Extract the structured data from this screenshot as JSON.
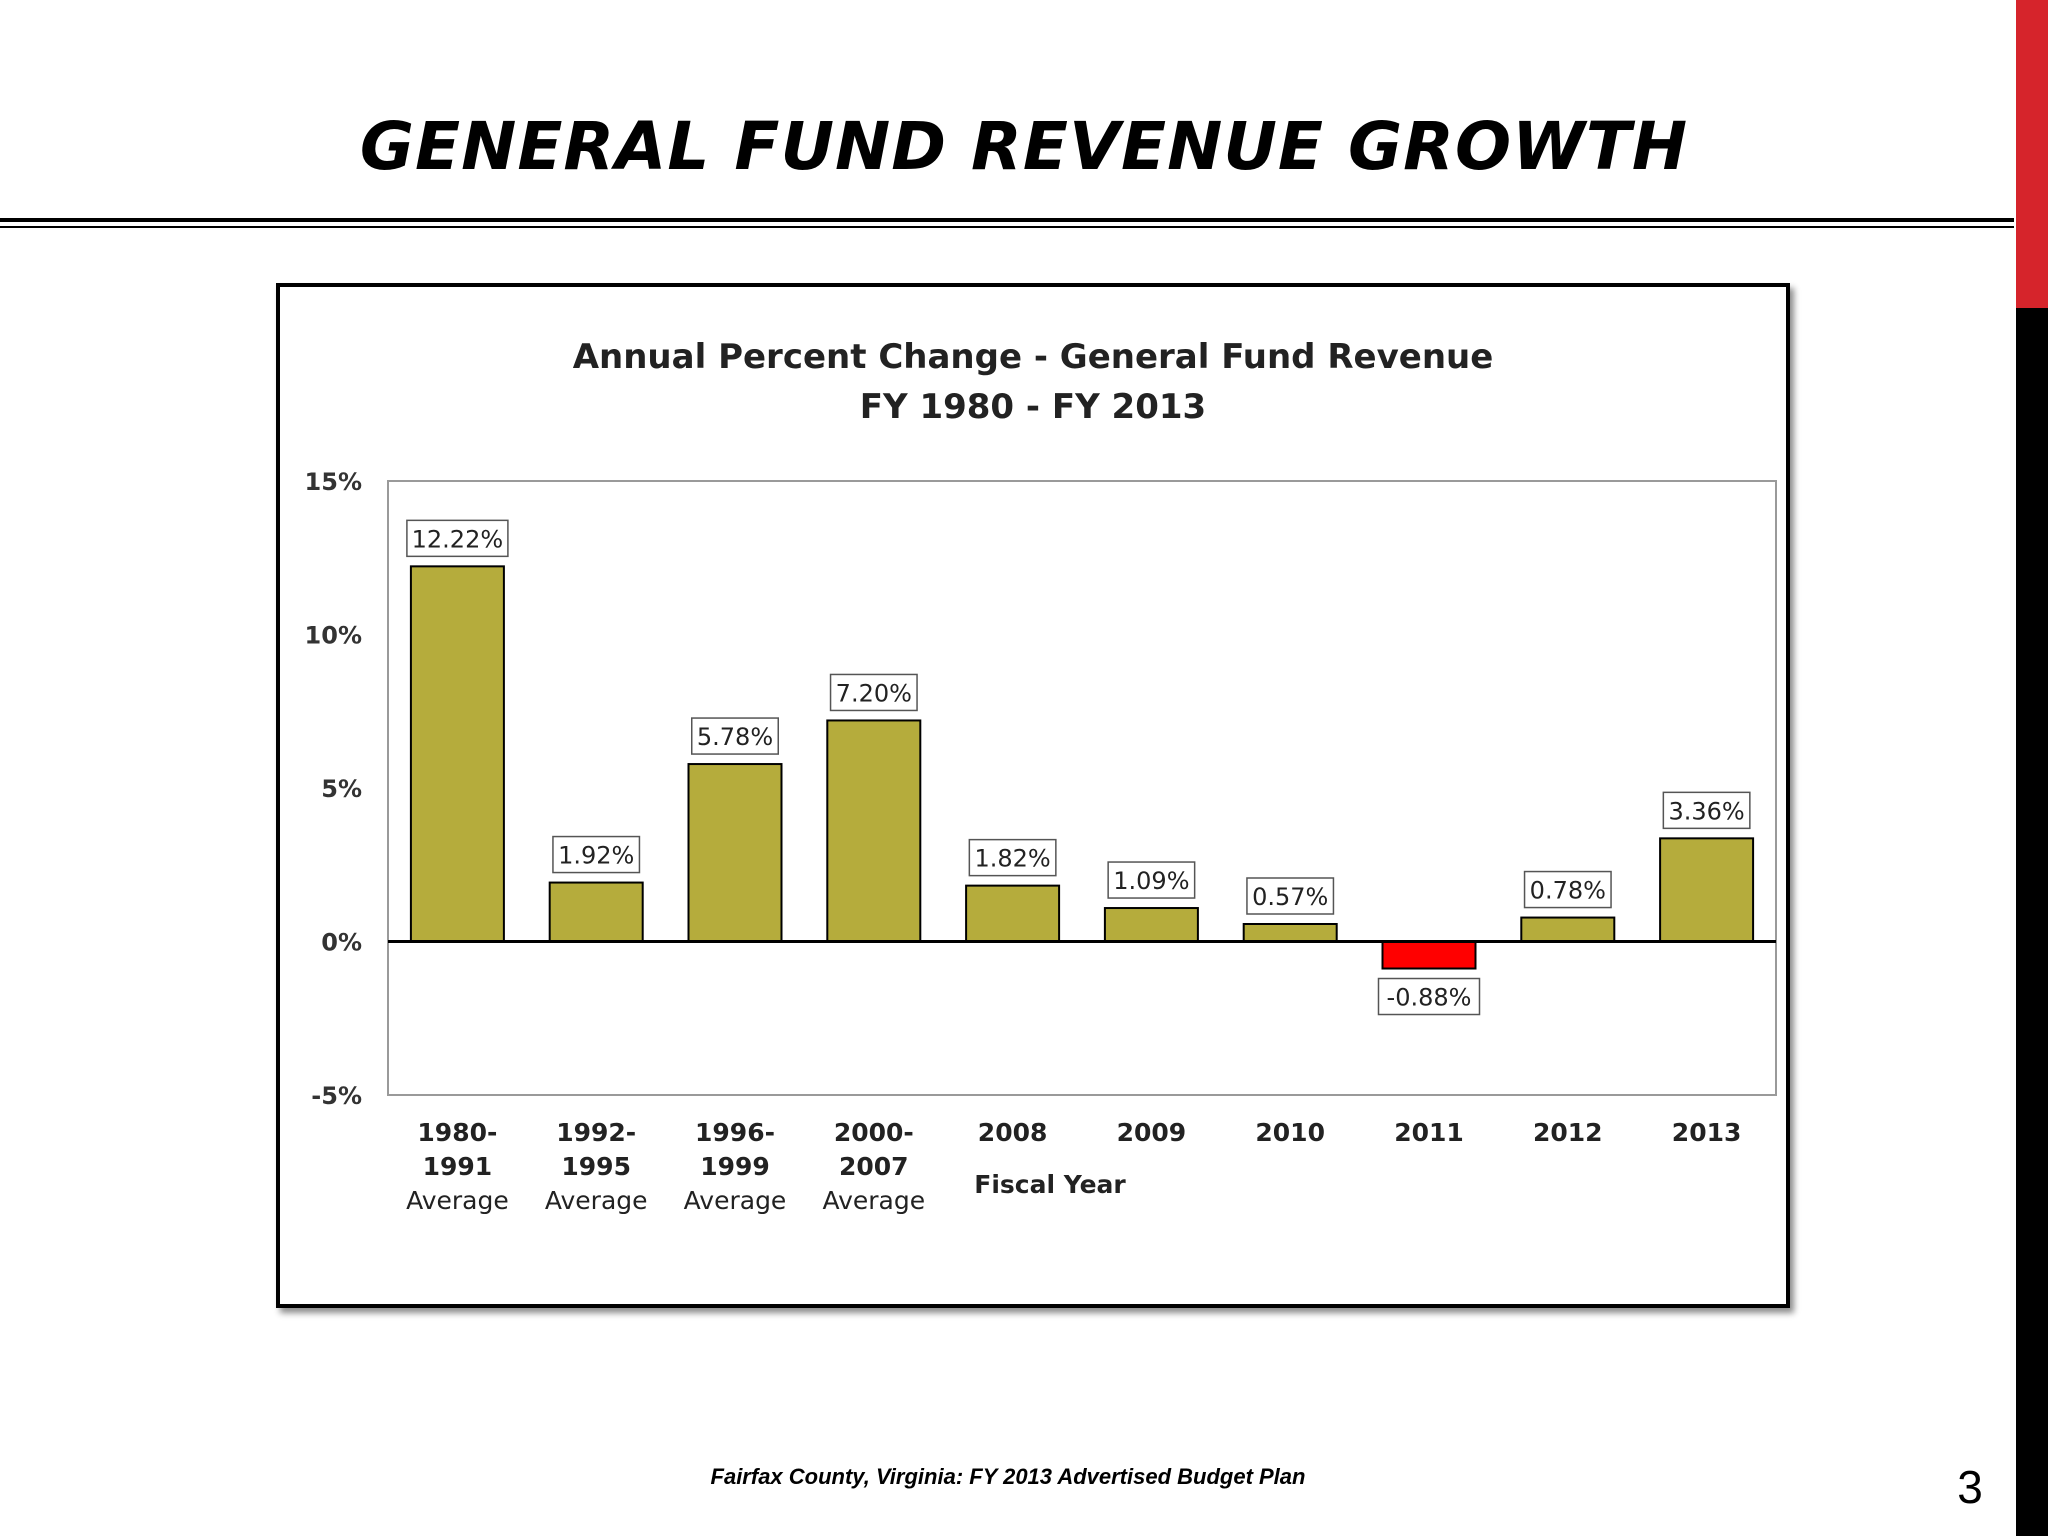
{
  "slide": {
    "title": "GENERAL FUND REVENUE GROWTH",
    "footer": "Fairfax County, Virginia: FY 2013 Advertised Budget Plan",
    "page_number": "3"
  },
  "colors": {
    "bar_positive": "#b5ac3c",
    "bar_negative": "#ff0000",
    "accent_red": "#d6242b"
  },
  "chart_data": {
    "type": "bar",
    "title": "Annual Percent Change - General Fund Revenue",
    "subtitle": "FY 1980 - FY 2013",
    "xlabel": "Fiscal Year",
    "ylabel": "",
    "ylim": [
      -5,
      15
    ],
    "yticks": [
      15,
      10,
      5,
      0,
      -5
    ],
    "ytick_labels": [
      "15%",
      "10%",
      "5%",
      "0%",
      "-5%"
    ],
    "grid": false,
    "categories": [
      [
        "1980-",
        "1991",
        "Average"
      ],
      [
        "1992-",
        "1995",
        "Average"
      ],
      [
        "1996-",
        "1999",
        "Average"
      ],
      [
        "2000-",
        "2007",
        "Average"
      ],
      [
        "2008"
      ],
      [
        "2009"
      ],
      [
        "2010"
      ],
      [
        "2011"
      ],
      [
        "2012"
      ],
      [
        "2013"
      ]
    ],
    "values": [
      12.22,
      1.92,
      5.78,
      7.2,
      1.82,
      1.09,
      0.57,
      -0.88,
      0.78,
      3.36
    ],
    "data_labels": [
      "12.22%",
      "1.92%",
      "5.78%",
      "7.20%",
      "1.82%",
      "1.09%",
      "0.57%",
      "-0.88%",
      "0.78%",
      "3.36%"
    ]
  }
}
